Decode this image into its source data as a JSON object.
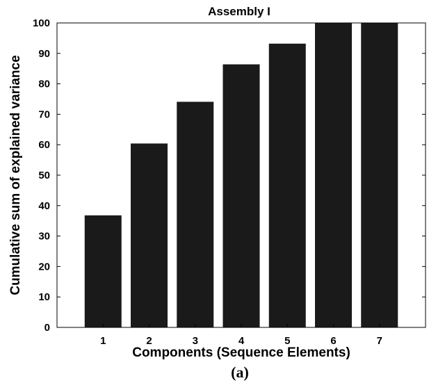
{
  "chart_data": {
    "type": "bar",
    "title": "Assembly I",
    "xlabel": "Components (Sequence Elements)",
    "ylabel": "Cumulative sum of explained variance",
    "categories": [
      "1",
      "2",
      "3",
      "4",
      "5",
      "6",
      "7"
    ],
    "values": [
      36.8,
      60.4,
      74.1,
      86.4,
      93.2,
      100,
      100
    ],
    "ylim": [
      0,
      100
    ],
    "yticks": [
      "0",
      "10",
      "20",
      "30",
      "40",
      "50",
      "60",
      "70",
      "80",
      "90",
      "100"
    ],
    "grid": false,
    "bar_color": "#1a1a1a"
  },
  "caption": "(a)"
}
